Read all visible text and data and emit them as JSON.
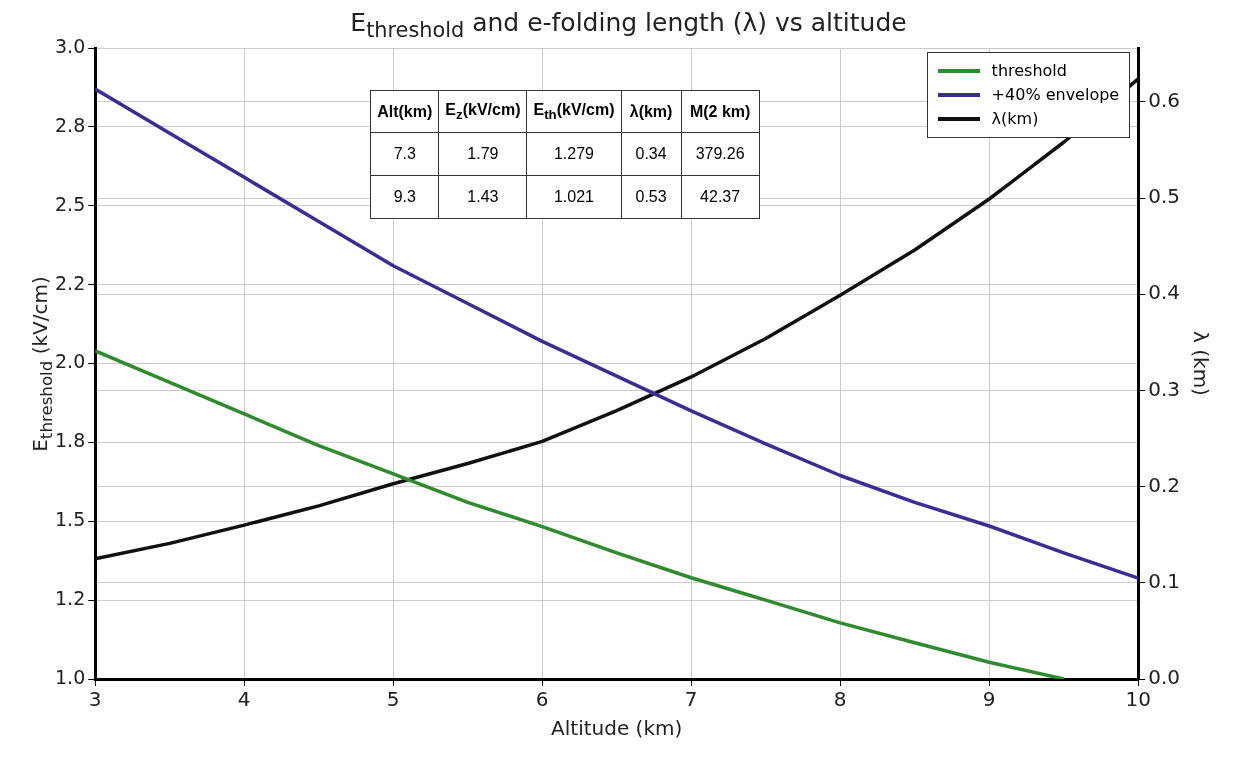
{
  "chart_data": {
    "type": "line",
    "title": "E$_{threshold}$ and e-folding length (λ) vs altitude",
    "xlabel": "Altitude (km)",
    "ylabel": "E$_{threshold}$ (kV/cm)",
    "y2label": "λ (km)",
    "x": [
      3,
      3.5,
      4,
      4.5,
      5,
      5.5,
      6,
      6.5,
      7,
      7.5,
      8,
      8.5,
      9,
      9.5,
      10
    ],
    "series": [
      {
        "name": "threshold",
        "color": "#2e8b2e",
        "x": [
          3,
          3.5,
          4,
          4.5,
          5,
          5.5,
          6,
          6.5,
          7,
          7.5,
          8,
          8.5,
          9,
          9.5
        ],
        "values": [
          2.04,
          1.94,
          1.84,
          1.74,
          1.65,
          1.56,
          1.483,
          1.4,
          1.321,
          1.25,
          1.178,
          1.115,
          1.053,
          1.0
        ]
      },
      {
        "name": "+40% envelope",
        "color": "#3a2e96",
        "values": [
          2.87,
          2.73,
          2.59,
          2.45,
          2.31,
          2.19,
          2.07,
          1.96,
          1.85,
          1.745,
          1.645,
          1.56,
          1.485,
          1.4,
          1.32
        ]
      },
      {
        "name": "λ(km)",
        "color": "#111111",
        "axis": "y2",
        "values": [
          0.125,
          0.141,
          0.16,
          0.18,
          0.203,
          0.224,
          0.247,
          0.279,
          0.314,
          0.354,
          0.399,
          0.446,
          0.499,
          0.558,
          0.624
        ]
      }
    ],
    "xlim": [
      3,
      10
    ],
    "xticks": [
      3,
      4,
      5,
      6,
      7,
      8,
      9,
      10
    ],
    "ylim": [
      1.0,
      3.0
    ],
    "yticks": [
      {
        "value": 1.0,
        "label": "1.0"
      },
      {
        "value": 1.25,
        "label": "1.2"
      },
      {
        "value": 1.5,
        "label": "1.5"
      },
      {
        "value": 1.75,
        "label": "1.8"
      },
      {
        "value": 2.0,
        "label": "2.0"
      },
      {
        "value": 2.25,
        "label": "2.2"
      },
      {
        "value": 2.5,
        "label": "2.5"
      },
      {
        "value": 2.75,
        "label": "2.8"
      },
      {
        "value": 3.0,
        "label": "3.0"
      }
    ],
    "y2lim": [
      0,
      0.656
    ],
    "y2ticks": [
      {
        "value": 0,
        "label": "0.0"
      },
      {
        "value": 0.1,
        "label": "0.1"
      },
      {
        "value": 0.2,
        "label": "0.2"
      },
      {
        "value": 0.3,
        "label": "0.3"
      },
      {
        "value": 0.4,
        "label": "0.4"
      },
      {
        "value": 0.5,
        "label": "0.5"
      },
      {
        "value": 0.6,
        "label": "0.6"
      }
    ],
    "grid": true,
    "legend": "top right",
    "line_style": "solid",
    "marker": "none",
    "annotations": [
      "Alt(km)",
      "E$_{z}$(kV/cm)",
      "E$_{th}$(kV/cm)",
      "λ(km)",
      "M(2 km)",
      "7.3",
      "1.79",
      "1.279",
      "0.34",
      "379.26",
      "9.3",
      "1.43",
      "1.021",
      "0.53",
      "42.37"
    ]
  }
}
